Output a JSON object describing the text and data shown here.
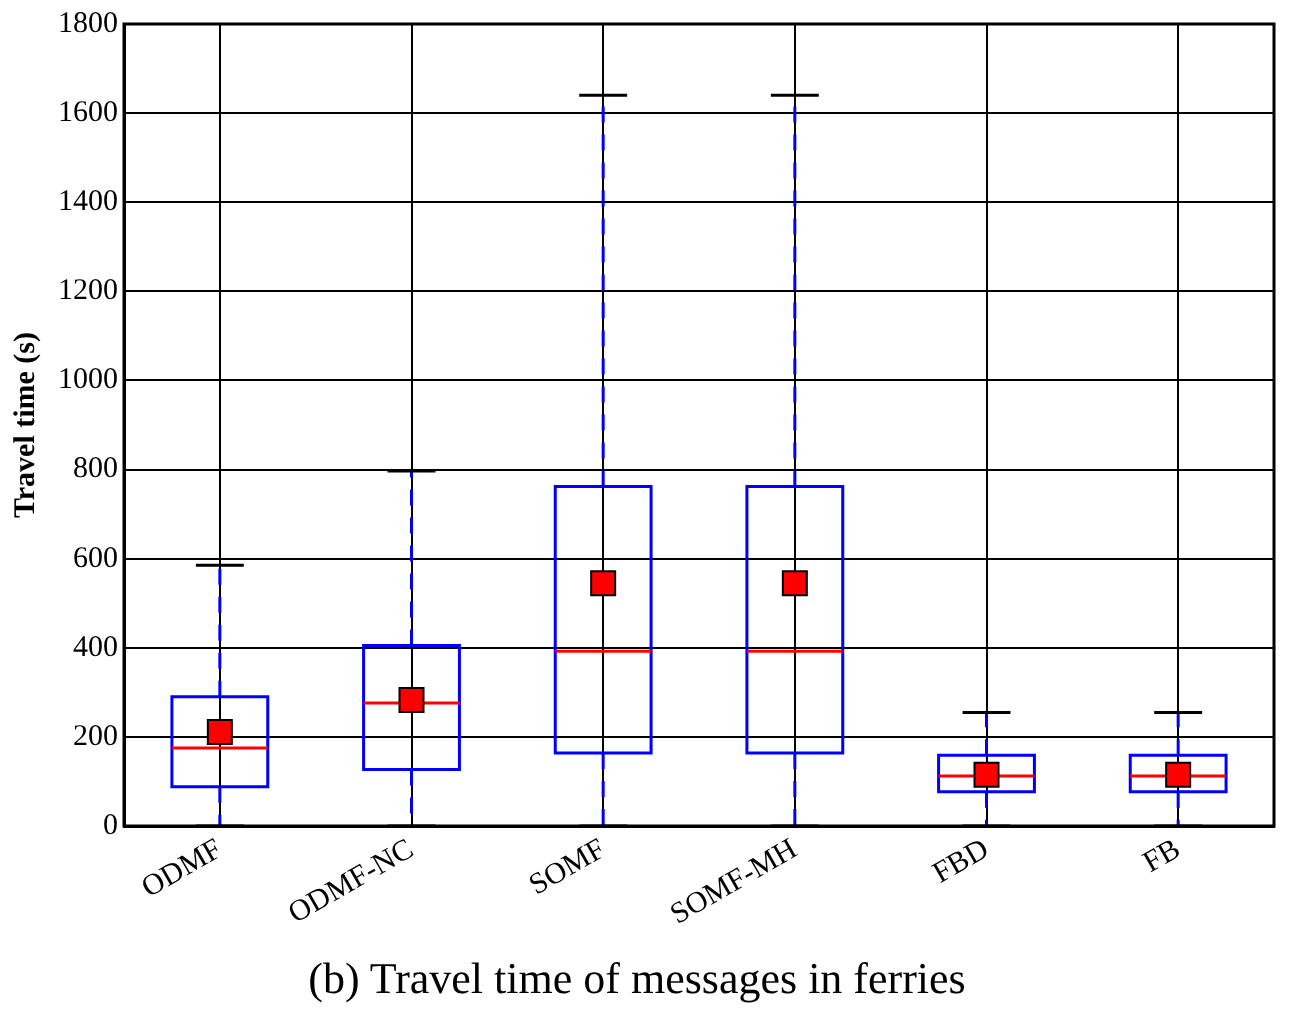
{
  "chart_data": {
    "type": "box",
    "title": "(b) Travel time of messages in ferries",
    "ylabel": "Travel time (s)",
    "categories": [
      "ODMF",
      "ODMF-NC",
      "SOMF",
      "SOMF-MH",
      "FBD",
      "FB"
    ],
    "boxes": [
      {
        "low": 0,
        "q1": 88,
        "median": 175,
        "q3": 290,
        "high": 585,
        "mean": 211
      },
      {
        "low": 0,
        "q1": 127,
        "median": 276,
        "q3": 405,
        "high": 797,
        "mean": 283
      },
      {
        "low": 0,
        "q1": 164,
        "median": 392,
        "q3": 762,
        "high": 1640,
        "mean": 545
      },
      {
        "low": 0,
        "q1": 164,
        "median": 392,
        "q3": 762,
        "high": 1640,
        "mean": 545
      },
      {
        "low": 0,
        "q1": 77,
        "median": 112,
        "q3": 159,
        "high": 255,
        "mean": 115
      },
      {
        "low": 0,
        "q1": 77,
        "median": 112,
        "q3": 159,
        "high": 255,
        "mean": 115
      }
    ],
    "color": "#0000ff",
    "ylim": [
      0,
      1800
    ],
    "yticks": [
      0,
      200,
      400,
      600,
      800,
      1000,
      1200,
      1400,
      1600,
      1800
    ],
    "grid": true,
    "marker": "square",
    "legend": false
  }
}
